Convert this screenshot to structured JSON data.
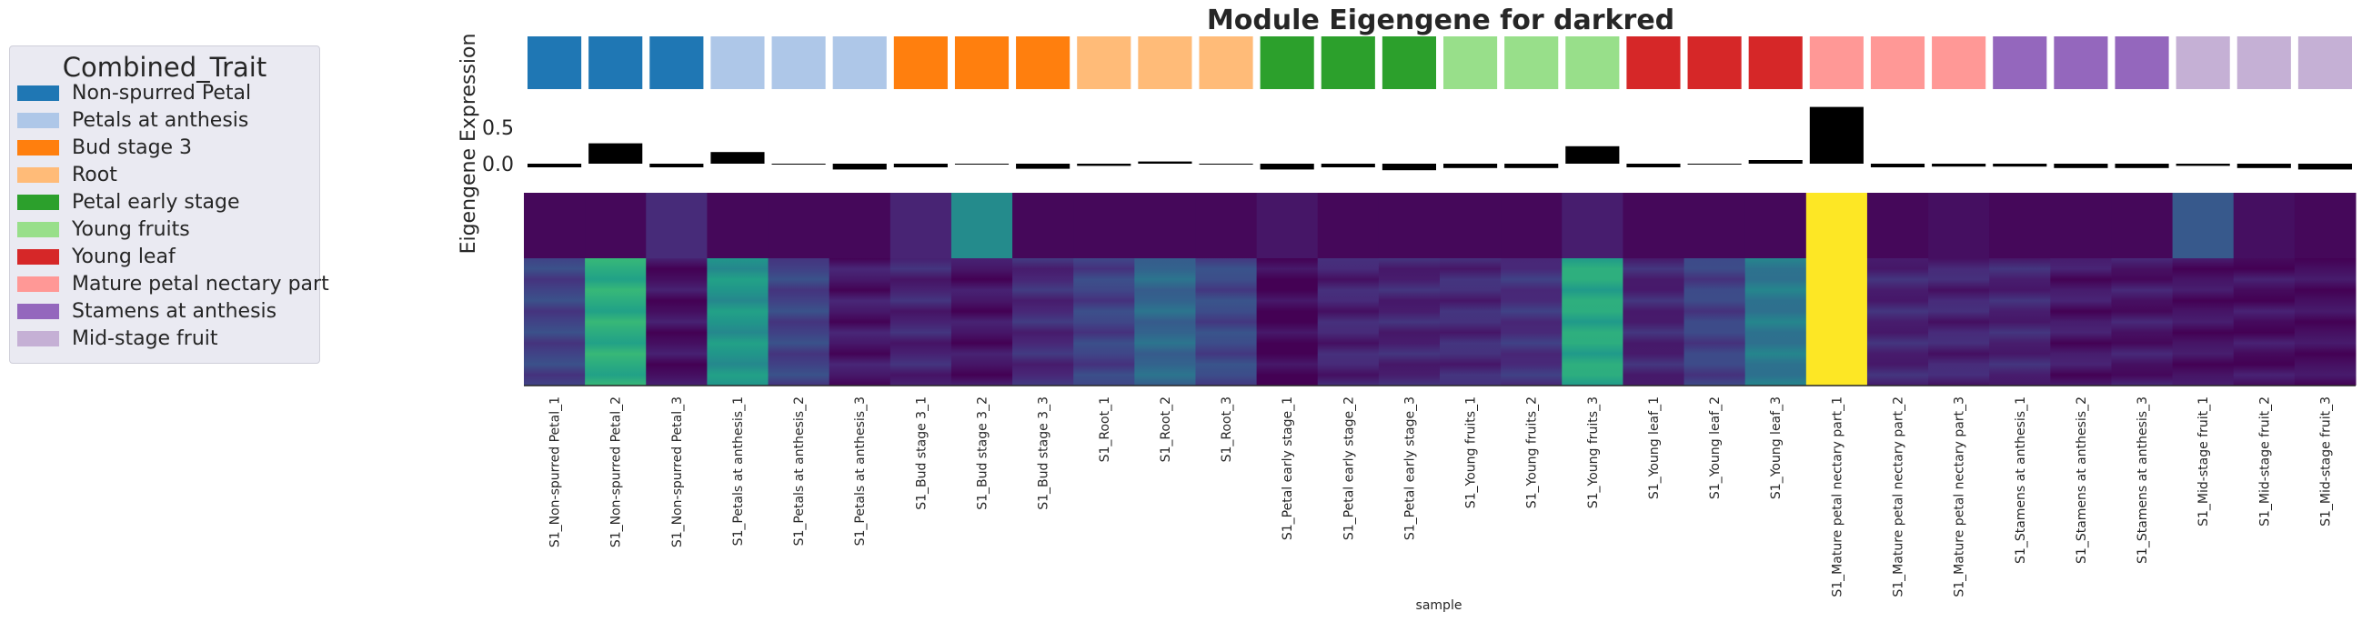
{
  "chart_data": {
    "type": "heatmap",
    "title": "Module Eigengene for darkred",
    "ylabel": "Eigengene Expression",
    "xlabel": "sample",
    "bar_yticks": [
      "0.5",
      "0.0"
    ],
    "legend": {
      "title": "Combined_Trait",
      "placement": "left",
      "entries": [
        {
          "label": "Non-spurred Petal",
          "color": "#1f77b4"
        },
        {
          "label": "Petals at anthesis",
          "color": "#aec7e8"
        },
        {
          "label": "Bud stage 3",
          "color": "#ff7f0e"
        },
        {
          "label": "Root",
          "color": "#ffbb78"
        },
        {
          "label": "Petal early stage",
          "color": "#2ca02c"
        },
        {
          "label": "Young fruits",
          "color": "#98df8a"
        },
        {
          "label": "Young leaf",
          "color": "#d62728"
        },
        {
          "label": "Mature petal nectary part",
          "color": "#ff9896"
        },
        {
          "label": "Stamens at anthesis",
          "color": "#9467bd"
        },
        {
          "label": "Mid-stage fruit",
          "color": "#c5b0d5"
        }
      ]
    },
    "samples": [
      "S1_Non-spurred Petal_1",
      "S1_Non-spurred Petal_2",
      "S1_Non-spurred Petal_3",
      "S1_Petals at anthesis_1",
      "S1_Petals at anthesis_2",
      "S1_Petals at anthesis_3",
      "S1_Bud stage 3_1",
      "S1_Bud stage 3_2",
      "S1_Bud stage 3_3",
      "S1_Root_1",
      "S1_Root_2",
      "S1_Root_3",
      "S1_Petal early stage_1",
      "S1_Petal early stage_2",
      "S1_Petal early stage_3",
      "S1_Young fruits_1",
      "S1_Young fruits_2",
      "S1_Young fruits_3",
      "S1_Young leaf_1",
      "S1_Young leaf_2",
      "S1_Young leaf_3",
      "S1_Mature petal nectary part_1",
      "S1_Mature petal nectary part_2",
      "S1_Mature petal nectary part_3",
      "S1_Stamens at anthesis_1",
      "S1_Stamens at anthesis_2",
      "S1_Stamens at anthesis_3",
      "S1_Mid-stage fruit_1",
      "S1_Mid-stage fruit_2",
      "S1_Mid-stage fruit_3"
    ],
    "trait_colors": [
      "#1f77b4",
      "#1f77b4",
      "#1f77b4",
      "#aec7e8",
      "#aec7e8",
      "#aec7e8",
      "#ff7f0e",
      "#ff7f0e",
      "#ff7f0e",
      "#ffbb78",
      "#ffbb78",
      "#ffbb78",
      "#2ca02c",
      "#2ca02c",
      "#2ca02c",
      "#98df8a",
      "#98df8a",
      "#98df8a",
      "#d62728",
      "#d62728",
      "#d62728",
      "#ff9896",
      "#ff9896",
      "#ff9896",
      "#9467bd",
      "#9467bd",
      "#9467bd",
      "#c5b0d5",
      "#c5b0d5",
      "#c5b0d5"
    ],
    "eigengene": [
      -0.05,
      0.28,
      -0.05,
      0.16,
      -0.01,
      -0.08,
      -0.05,
      0.0,
      -0.07,
      -0.03,
      0.03,
      0.0,
      -0.08,
      -0.05,
      -0.09,
      -0.06,
      -0.06,
      0.24,
      -0.05,
      -0.01,
      0.05,
      0.78,
      -0.05,
      -0.04,
      -0.04,
      -0.06,
      -0.06,
      -0.03,
      -0.06,
      -0.08
    ],
    "eigengene_range": [
      -0.15,
      0.85
    ],
    "heatmap_intensity_top": [
      0.02,
      0.02,
      0.12,
      0.02,
      0.02,
      0.02,
      0.1,
      0.48,
      0.02,
      0.02,
      0.02,
      0.02,
      0.06,
      0.02,
      0.02,
      0.02,
      0.02,
      0.08,
      0.02,
      0.02,
      0.02,
      1.0,
      0.02,
      0.04,
      0.02,
      0.02,
      0.02,
      0.28,
      0.04,
      0.02
    ],
    "heatmap_intensity_bottom": [
      0.2,
      0.62,
      0.04,
      0.52,
      0.2,
      0.06,
      0.1,
      0.05,
      0.12,
      0.2,
      0.33,
      0.22,
      0.01,
      0.1,
      0.1,
      0.12,
      0.14,
      0.6,
      0.1,
      0.2,
      0.4,
      1.0,
      0.1,
      0.1,
      0.1,
      0.06,
      0.06,
      0.04,
      0.04,
      0.03
    ],
    "colormap": "viridis"
  }
}
